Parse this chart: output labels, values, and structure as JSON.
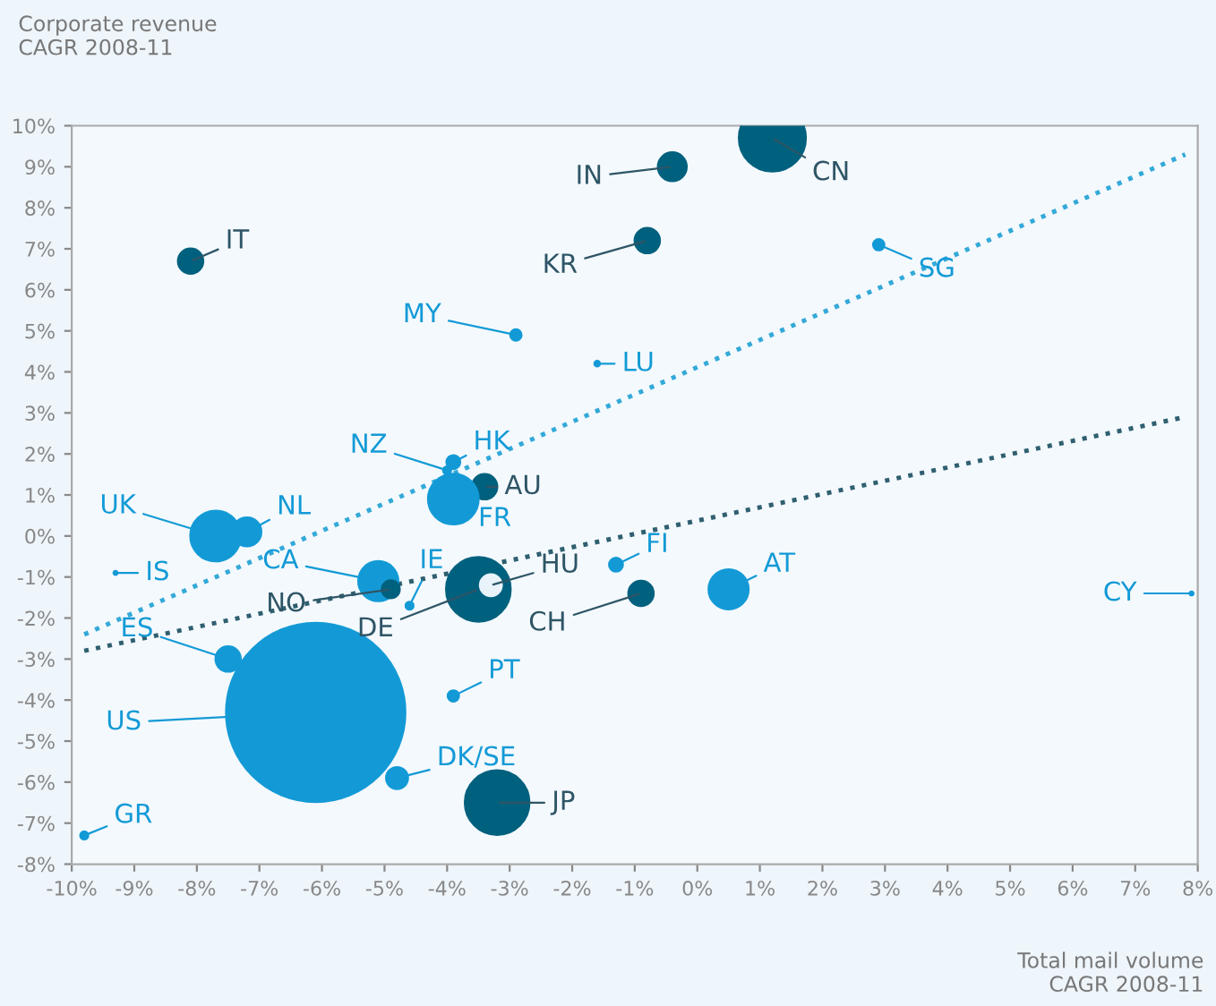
{
  "chart_data": {
    "type": "bubble",
    "ylabel": "Corporate revenue\nCAGR 2008-11",
    "xlabel": "Total mail volume\nCAGR 2008-11",
    "xlim": [
      -10,
      8
    ],
    "ylim": [
      -8,
      10
    ],
    "xticks": [
      {
        "value": -10,
        "label": "-10%"
      },
      {
        "value": -9,
        "label": "-9%"
      },
      {
        "value": -8,
        "label": "-8%"
      },
      {
        "value": -7,
        "label": "-7%"
      },
      {
        "value": -6,
        "label": "-6%"
      },
      {
        "value": -5,
        "label": "-5%"
      },
      {
        "value": -4,
        "label": "-4%"
      },
      {
        "value": -3,
        "label": "-3%"
      },
      {
        "value": -2,
        "label": "-2%"
      },
      {
        "value": -1,
        "label": "-1%"
      },
      {
        "value": 0,
        "label": "0%"
      },
      {
        "value": 1,
        "label": "1%"
      },
      {
        "value": 2,
        "label": "2%"
      },
      {
        "value": 3,
        "label": "3%"
      },
      {
        "value": 4,
        "label": "4%"
      },
      {
        "value": 5,
        "label": "5%"
      },
      {
        "value": 6,
        "label": "6%"
      },
      {
        "value": 7,
        "label": "7%"
      },
      {
        "value": 8,
        "label": "8%"
      }
    ],
    "yticks": [
      {
        "value": -8,
        "label": "-8%"
      },
      {
        "value": -7,
        "label": "-7%"
      },
      {
        "value": -6,
        "label": "-6%"
      },
      {
        "value": -5,
        "label": "-5%"
      },
      {
        "value": -4,
        "label": "-4%"
      },
      {
        "value": -3,
        "label": "-3%"
      },
      {
        "value": -2,
        "label": "-2%"
      },
      {
        "value": -1,
        "label": "-1%"
      },
      {
        "value": 0,
        "label": "0%"
      },
      {
        "value": 1,
        "label": "1%"
      },
      {
        "value": 2,
        "label": "2%"
      },
      {
        "value": 3,
        "label": "3%"
      },
      {
        "value": 4,
        "label": "4%"
      },
      {
        "value": 5,
        "label": "5%"
      },
      {
        "value": 6,
        "label": "6%"
      },
      {
        "value": 7,
        "label": "7%"
      },
      {
        "value": 8,
        "label": "8%"
      },
      {
        "value": 9,
        "label": "9%"
      },
      {
        "value": 10,
        "label": "10%"
      }
    ],
    "grid": false,
    "legend": false,
    "series": [
      {
        "x": [
          -8.1,
          1.2,
          -0.4,
          -0.8,
          2.9,
          -2.9,
          -1.6,
          -3.9,
          -3.4,
          -3.9,
          -7.7,
          -7.2,
          -5.1,
          -4.9,
          -4.6,
          -3.5,
          -3.3,
          -1.3,
          -0.9,
          0.5,
          -7.5,
          -6.1,
          -3.9,
          -4.8,
          -3.2,
          -9.8,
          -4.0,
          -9.3,
          7.9
        ],
        "values": [
          6.7,
          9.7,
          9.0,
          7.2,
          7.1,
          4.9,
          4.2,
          1.8,
          1.2,
          0.9,
          0.0,
          0.1,
          -1.1,
          -1.3,
          -1.7,
          -1.3,
          -1.2,
          -0.7,
          -1.4,
          -1.3,
          -3.0,
          -4.3,
          -3.9,
          -5.9,
          -6.5,
          -7.3,
          1.6,
          -0.9,
          -1.4
        ],
        "sizes": [
          0.02,
          0.14,
          0.026,
          0.02,
          0.004,
          0.004,
          0.001,
          0.006,
          0.02,
          0.08,
          0.08,
          0.026,
          0.05,
          0.01,
          0.002,
          0.13,
          0.015,
          0.006,
          0.02,
          0.05,
          0.02,
          1,
          0.004,
          0.015,
          0.13,
          0.002,
          0.002,
          0.0005,
          0.0005
        ],
        "colors": [
          "#00617e",
          "#00617e",
          "#00617e",
          "#00617e",
          "#139ad6",
          "#139ad6",
          "#139ad6",
          "#139ad6",
          "#00617e",
          "#139ad6",
          "#139ad6",
          "#139ad6",
          "#139ad6",
          "#00617e",
          "#139ad6",
          "#00617e",
          "#e8f3fa",
          "#139ad6",
          "#00617e",
          "#139ad6",
          "#139ad6",
          "#139ad6",
          "#139ad6",
          "#139ad6",
          "#00617e",
          "#139ad6",
          "#139ad6",
          "#139ad6",
          "#139ad6"
        ]
      },
      {
        "type": "line",
        "color": "#33a9d8",
        "line_style": "dotted",
        "x": [
          -9.8,
          7.8
        ],
        "values": [
          -2.4,
          9.3
        ]
      },
      {
        "type": "line",
        "color": "#2f5f70",
        "line_style": "dotted",
        "x": [
          -9.8,
          7.8
        ],
        "values": [
          -2.8,
          2.9
        ]
      }
    ],
    "annotations": [
      {
        "text": "IT",
        "x": -8.1,
        "y": 6.7
      },
      {
        "text": "CN",
        "x": 1.2,
        "y": 9.7
      },
      {
        "text": "IN",
        "x": -0.4,
        "y": 9.0
      },
      {
        "text": "KR",
        "x": -0.8,
        "y": 7.2
      },
      {
        "text": "SG",
        "x": 2.9,
        "y": 7.1
      },
      {
        "text": "MY",
        "x": -2.9,
        "y": 4.9
      },
      {
        "text": "LU",
        "x": -1.6,
        "y": 4.2
      },
      {
        "text": "HK",
        "x": -3.9,
        "y": 1.8
      },
      {
        "text": "AU",
        "x": -3.4,
        "y": 1.2
      },
      {
        "text": "FR",
        "x": -3.9,
        "y": 0.9
      },
      {
        "text": "UK",
        "x": -7.7,
        "y": 0.0
      },
      {
        "text": "NL",
        "x": -7.2,
        "y": 0.1
      },
      {
        "text": "CA",
        "x": -5.1,
        "y": -1.1
      },
      {
        "text": "NO",
        "x": -4.9,
        "y": -1.3
      },
      {
        "text": "IE",
        "x": -4.6,
        "y": -1.7
      },
      {
        "text": "DE",
        "x": -3.5,
        "y": -1.3
      },
      {
        "text": "HU",
        "x": -3.3,
        "y": -1.2
      },
      {
        "text": "FI",
        "x": -1.3,
        "y": -0.7
      },
      {
        "text": "CH",
        "x": -0.9,
        "y": -1.4
      },
      {
        "text": "AT",
        "x": 0.5,
        "y": -1.3
      },
      {
        "text": "ES",
        "x": -7.5,
        "y": -3.0
      },
      {
        "text": "US",
        "x": -6.1,
        "y": -4.3
      },
      {
        "text": "PT",
        "x": -3.9,
        "y": -3.9
      },
      {
        "text": "DK/SE",
        "x": -4.8,
        "y": -5.9
      },
      {
        "text": "JP",
        "x": -3.2,
        "y": -6.5
      },
      {
        "text": "GR",
        "x": -9.8,
        "y": -7.3
      },
      {
        "text": "NZ",
        "x": -4.0,
        "y": 1.6
      },
      {
        "text": "IS",
        "x": -9.3,
        "y": -0.9
      },
      {
        "text": "CY",
        "x": 7.9,
        "y": -1.4
      }
    ]
  }
}
